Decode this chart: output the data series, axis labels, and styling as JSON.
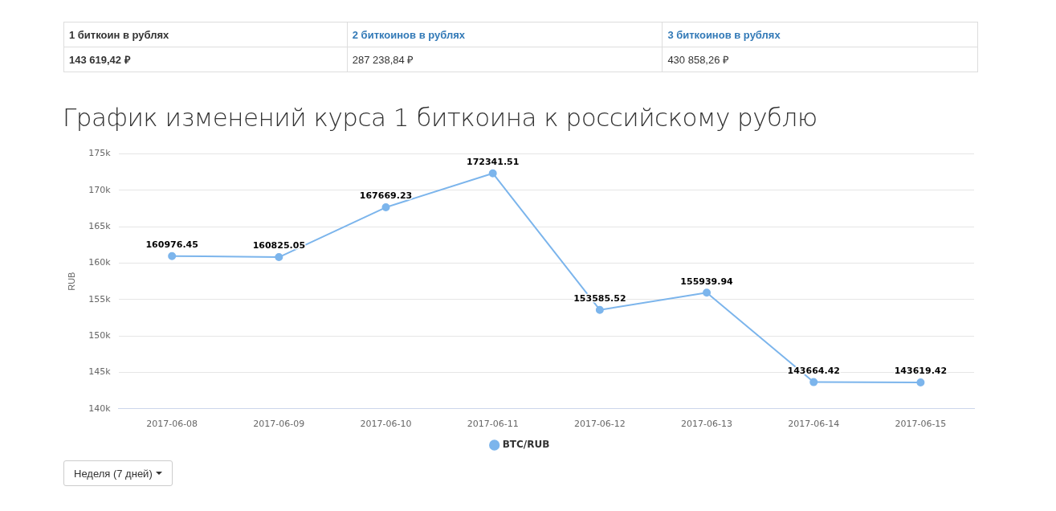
{
  "chart_data": [
    {
      "type": "other",
      "annotations": [
        "1 биткоин в рублях",
        "2 биткоинов в рублях",
        "3 биткоинов в рублях",
        "143 619,42 ₽",
        "287 238,84 ₽",
        "430 858,26 ₽"
      ]
    },
    {
      "type": "line",
      "title": "График изменений курса 1 биткоина к российскому рублю",
      "ylabel": "RUB",
      "categories": [
        "2017-06-08",
        "2017-06-09",
        "2017-06-10",
        "2017-06-11",
        "2017-06-12",
        "2017-06-13",
        "2017-06-14",
        "2017-06-15"
      ],
      "series": [
        {
          "name": "BTC/RUB",
          "color": "#7cb5ec",
          "values": [
            160976.45,
            160825.05,
            167669.23,
            172341.51,
            153585.52,
            155939.94,
            143664.42,
            143619.42
          ]
        }
      ],
      "ylim": [
        140000,
        175000
      ],
      "yticks": [
        {
          "value": 140000,
          "label": "140k"
        },
        {
          "value": 145000,
          "label": "145k"
        },
        {
          "value": 150000,
          "label": "150k"
        },
        {
          "value": 155000,
          "label": "155k"
        },
        {
          "value": 160000,
          "label": "160k"
        },
        {
          "value": 165000,
          "label": "165k"
        },
        {
          "value": 170000,
          "label": "170k"
        },
        {
          "value": 175000,
          "label": "175k"
        }
      ],
      "grid": "y",
      "legend": "bottom",
      "marker": "circle",
      "line_style": "solid",
      "data_labels": true,
      "annotations": [
        "Неделя (7 дней)"
      ]
    }
  ]
}
